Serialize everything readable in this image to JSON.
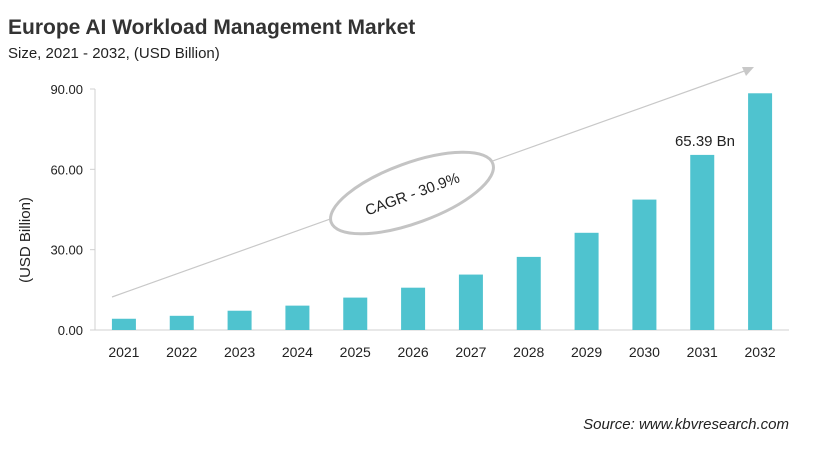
{
  "title": "Europe AI Workload Management Market",
  "subtitle": "Size, 2021 - 2032, (USD Billion)",
  "source": "Source: www.kbvresearch.com",
  "chart_data": {
    "type": "bar",
    "title": "Europe AI Workload Management Market",
    "subtitle": "Size, 2021 - 2032, (USD Billion)",
    "xlabel": "",
    "ylabel": "(USD Billion)",
    "ylim": [
      0,
      90
    ],
    "yticks": [
      "0.00",
      "30.00",
      "60.00",
      "90.00"
    ],
    "categories": [
      "2021",
      "2022",
      "2023",
      "2024",
      "2025",
      "2026",
      "2027",
      "2028",
      "2029",
      "2030",
      "2031",
      "2032"
    ],
    "values": [
      4.2,
      5.3,
      7.2,
      9.1,
      12.1,
      15.8,
      20.7,
      27.3,
      36.3,
      48.7,
      65.39,
      88.4
    ],
    "data_labels": {
      "2031": "65.39 Bn"
    },
    "annotation": "CAGR - 30.9%",
    "bar_color": "#4fc3cf",
    "grid": false
  }
}
